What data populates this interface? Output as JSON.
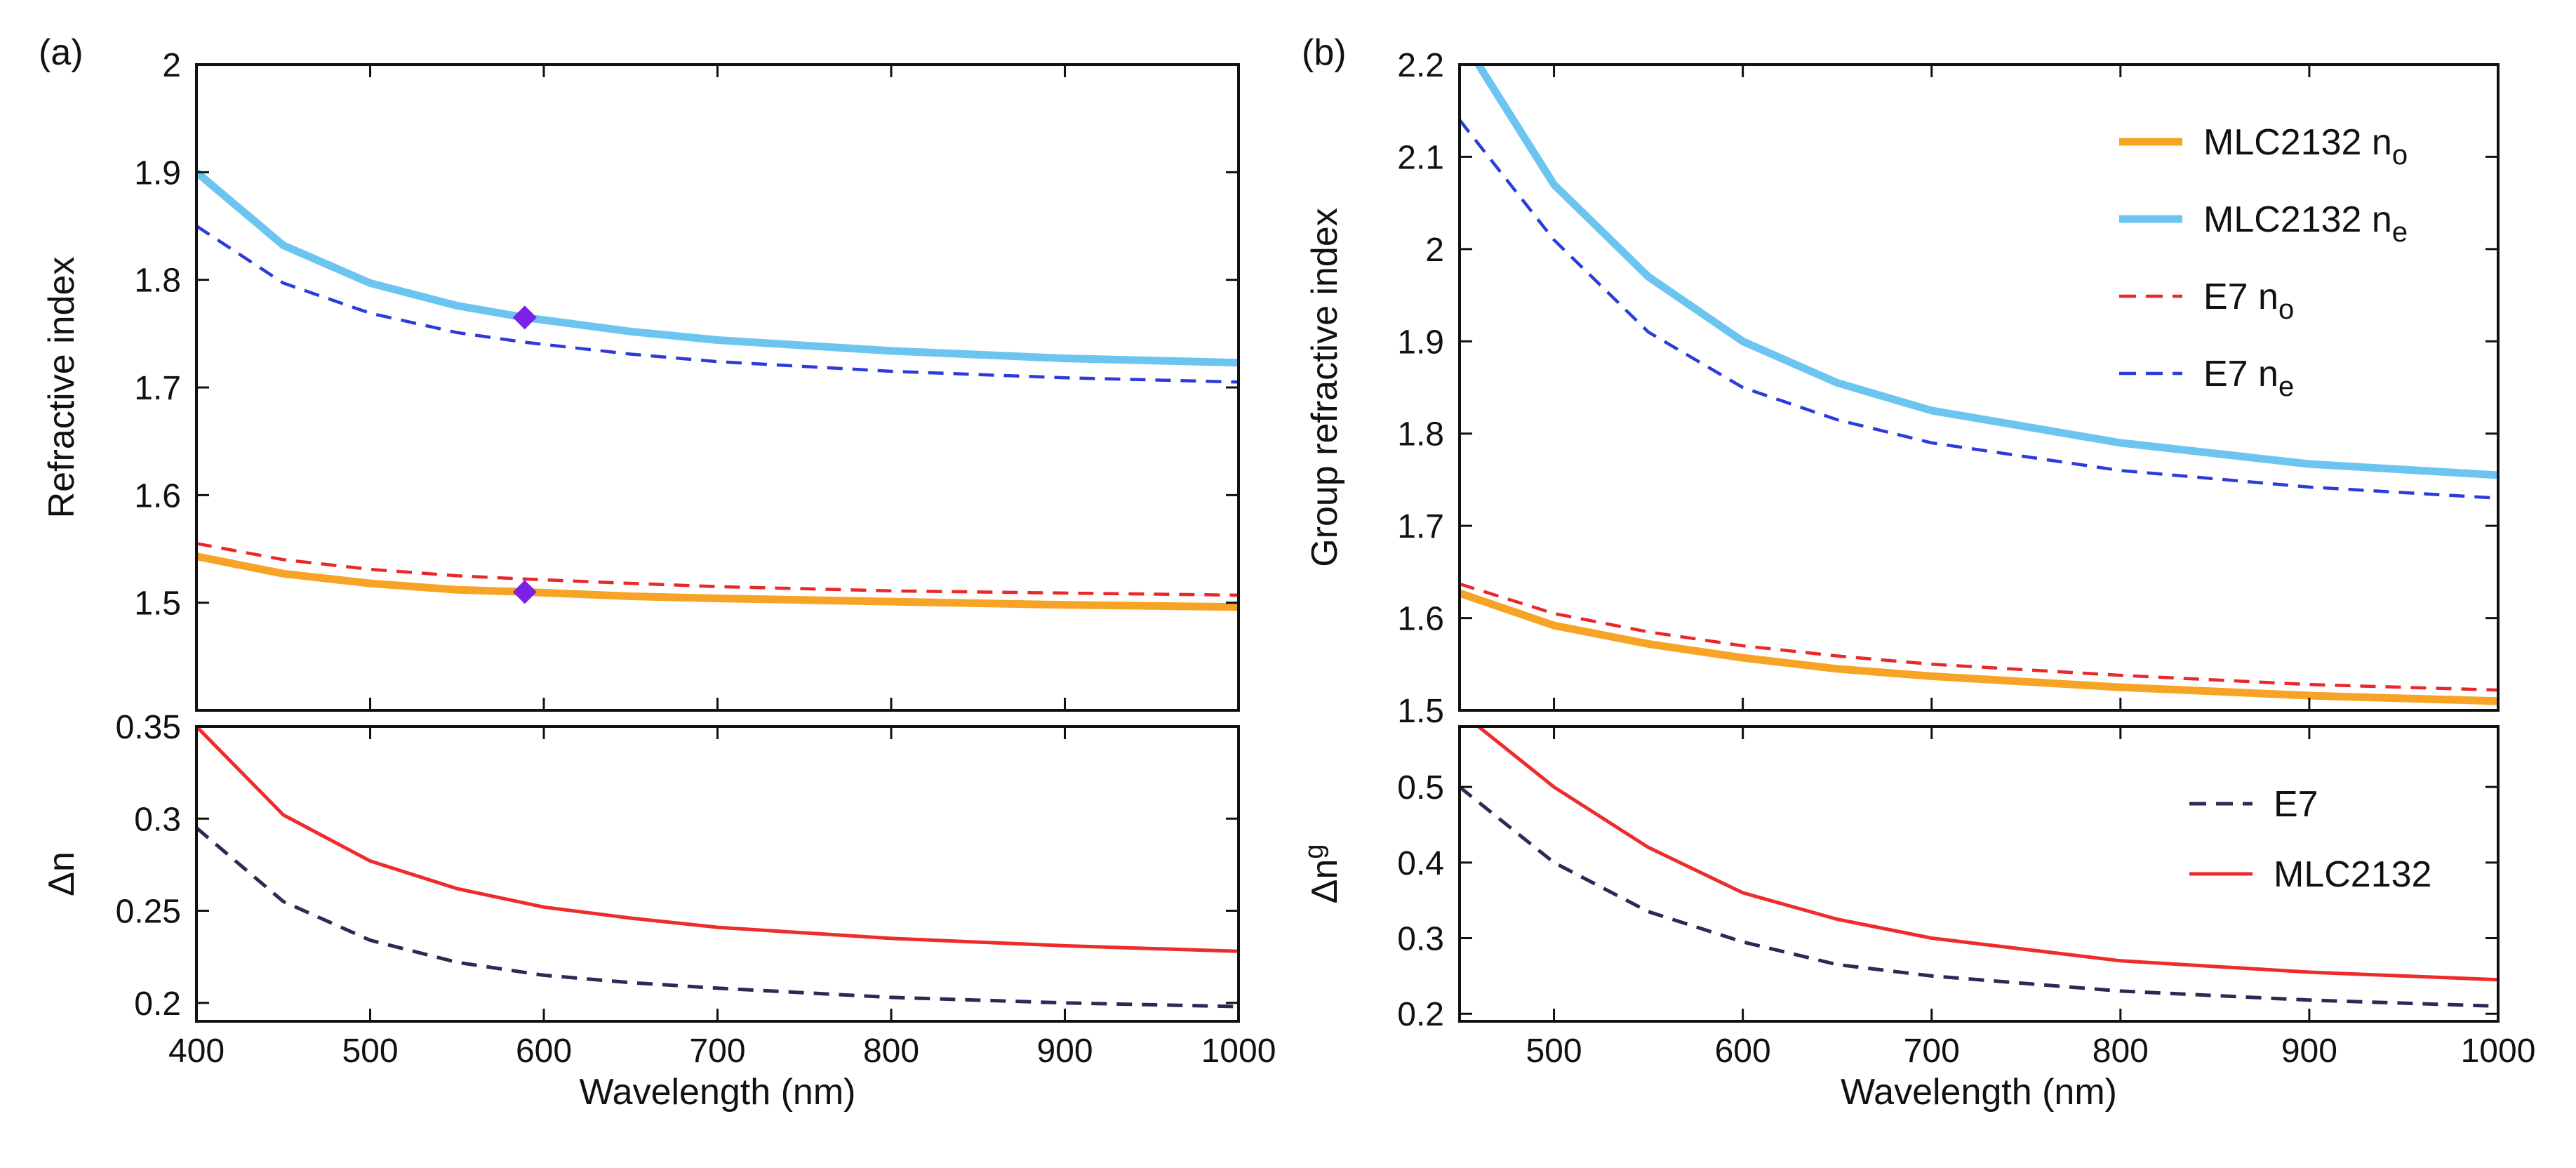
{
  "chart_data": [
    {
      "id": "a_top",
      "panel_label": "(a)",
      "type": "line",
      "xlabel": "",
      "ylabel": "Refractive index",
      "xlim": [
        400,
        1000
      ],
      "ylim": [
        1.4,
        2.0
      ],
      "x_ticks": [],
      "y_ticks": [
        1.5,
        1.6,
        1.7,
        1.8,
        1.9,
        2.0
      ],
      "y_tick_labels": [
        "1.5",
        "1.6",
        "1.7",
        "1.8",
        "1.9",
        "2"
      ],
      "series": [
        {
          "name": "MLC2132 ne",
          "style": "solid-light-blue",
          "color": "#6CC5F0",
          "x": [
            400,
            450,
            500,
            550,
            589,
            650,
            700,
            800,
            900,
            1000
          ],
          "y": [
            1.9,
            1.832,
            1.797,
            1.776,
            1.765,
            1.752,
            1.744,
            1.734,
            1.727,
            1.723
          ]
        },
        {
          "name": "E7 ne",
          "style": "dashed-blue",
          "color": "#2D3CD8",
          "x": [
            400,
            450,
            500,
            550,
            589,
            650,
            700,
            800,
            900,
            1000
          ],
          "y": [
            1.85,
            1.797,
            1.769,
            1.751,
            1.742,
            1.731,
            1.724,
            1.715,
            1.709,
            1.705
          ]
        },
        {
          "name": "E7 no",
          "style": "dashed-red",
          "color": "#E8282B",
          "x": [
            400,
            450,
            500,
            550,
            589,
            650,
            700,
            800,
            900,
            1000
          ],
          "y": [
            1.555,
            1.54,
            1.531,
            1.525,
            1.522,
            1.518,
            1.515,
            1.511,
            1.509,
            1.507
          ]
        },
        {
          "name": "MLC2132 no",
          "style": "solid-orange",
          "color": "#F7A325",
          "x": [
            400,
            450,
            500,
            550,
            589,
            650,
            700,
            800,
            900,
            1000
          ],
          "y": [
            1.543,
            1.527,
            1.518,
            1.512,
            1.51,
            1.506,
            1.504,
            1.501,
            1.498,
            1.496
          ]
        }
      ],
      "markers": [
        {
          "name": "ne at 589 nm",
          "color": "#7B22E6",
          "x": 589,
          "y": 1.765
        },
        {
          "name": "no at 589 nm",
          "color": "#7B22E6",
          "x": 589,
          "y": 1.51
        }
      ]
    },
    {
      "id": "a_bottom",
      "type": "line",
      "xlabel": "Wavelength (nm)",
      "ylabel": "Δn",
      "xlim": [
        400,
        1000
      ],
      "ylim": [
        0.19,
        0.35
      ],
      "x_ticks": [
        400,
        500,
        600,
        700,
        800,
        900,
        1000
      ],
      "x_tick_labels": [
        "400",
        "500",
        "600",
        "700",
        "800",
        "900",
        "1000"
      ],
      "y_ticks": [
        0.2,
        0.25,
        0.3,
        0.35
      ],
      "y_tick_labels": [
        "0.2",
        "0.25",
        "0.3",
        "0.35"
      ],
      "series": [
        {
          "name": "MLC2132",
          "style": "solid-red",
          "color": "#EE2C2C",
          "x": [
            400,
            450,
            500,
            550,
            600,
            650,
            700,
            800,
            900,
            1000
          ],
          "y": [
            0.35,
            0.302,
            0.277,
            0.262,
            0.252,
            0.246,
            0.241,
            0.235,
            0.231,
            0.228
          ]
        },
        {
          "name": "E7",
          "style": "dashed-navy",
          "color": "#2A2A55",
          "x": [
            400,
            450,
            500,
            550,
            600,
            650,
            700,
            800,
            900,
            1000
          ],
          "y": [
            0.295,
            0.255,
            0.234,
            0.222,
            0.215,
            0.211,
            0.208,
            0.203,
            0.2,
            0.198
          ]
        }
      ]
    },
    {
      "id": "b_top",
      "panel_label": "(b)",
      "type": "line",
      "xlabel": "",
      "ylabel": "Group refractive index",
      "xlim": [
        450,
        1000
      ],
      "ylim": [
        1.5,
        2.2
      ],
      "x_ticks": [],
      "y_ticks": [
        1.5,
        1.6,
        1.7,
        1.8,
        1.9,
        2.0,
        2.1,
        2.2
      ],
      "y_tick_labels": [
        "1.5",
        "1.6",
        "1.7",
        "1.8",
        "1.9",
        "2",
        "2.1",
        "2.2"
      ],
      "series": [
        {
          "name": "MLC2132 ne",
          "style": "solid-light-blue",
          "color": "#6CC5F0",
          "x": [
            460,
            500,
            550,
            600,
            650,
            700,
            800,
            900,
            1000
          ],
          "y": [
            2.2,
            2.07,
            1.97,
            1.9,
            1.855,
            1.825,
            1.79,
            1.767,
            1.755
          ]
        },
        {
          "name": "E7 ne",
          "style": "dashed-blue",
          "color": "#2D3CD8",
          "x": [
            450,
            500,
            550,
            600,
            650,
            700,
            800,
            900,
            1000
          ],
          "y": [
            2.14,
            2.01,
            1.91,
            1.85,
            1.815,
            1.79,
            1.76,
            1.742,
            1.73
          ]
        },
        {
          "name": "E7 no",
          "style": "dashed-red",
          "color": "#E8282B",
          "x": [
            450,
            500,
            550,
            600,
            650,
            700,
            800,
            900,
            1000
          ],
          "y": [
            1.637,
            1.605,
            1.585,
            1.57,
            1.559,
            1.55,
            1.538,
            1.528,
            1.522
          ]
        },
        {
          "name": "MLC2132 no",
          "style": "solid-orange",
          "color": "#F7A325",
          "x": [
            450,
            500,
            550,
            600,
            650,
            700,
            800,
            900,
            1000
          ],
          "y": [
            1.627,
            1.592,
            1.572,
            1.557,
            1.545,
            1.537,
            1.525,
            1.516,
            1.51
          ]
        }
      ],
      "legend": {
        "placement": "top-right",
        "entries": [
          {
            "series": "MLC2132 no",
            "label": "MLC2132 n",
            "sub": "o",
            "style": "solid-orange",
            "color": "#F7A325"
          },
          {
            "series": "MLC2132 ne",
            "label": "MLC2132 n",
            "sub": "e",
            "style": "solid-light-blue",
            "color": "#6CC5F0"
          },
          {
            "series": "E7 no",
            "label": "E7 n",
            "sub": "o",
            "style": "dashed-red",
            "color": "#E8282B"
          },
          {
            "series": "E7 ne",
            "label": "E7 n",
            "sub": "e",
            "style": "dashed-blue",
            "color": "#2D3CD8"
          }
        ]
      }
    },
    {
      "id": "b_bottom",
      "type": "line",
      "xlabel": "Wavelength (nm)",
      "ylabel": "Δn",
      "ylabel_sup": "g",
      "xlim": [
        450,
        1000
      ],
      "ylim": [
        0.19,
        0.58
      ],
      "x_ticks": [
        500,
        600,
        700,
        800,
        900,
        1000
      ],
      "x_tick_labels": [
        "500",
        "600",
        "700",
        "800",
        "900",
        "1000"
      ],
      "y_ticks": [
        0.2,
        0.3,
        0.4,
        0.5
      ],
      "y_tick_labels": [
        "0.2",
        "0.3",
        "0.4",
        "0.5"
      ],
      "series": [
        {
          "name": "MLC2132",
          "style": "solid-red",
          "color": "#EE2C2C",
          "x": [
            460,
            500,
            550,
            600,
            650,
            700,
            800,
            900,
            1000
          ],
          "y": [
            0.58,
            0.5,
            0.42,
            0.36,
            0.325,
            0.3,
            0.27,
            0.255,
            0.245
          ]
        },
        {
          "name": "E7",
          "style": "dashed-navy",
          "color": "#2A2A55",
          "x": [
            450,
            500,
            550,
            600,
            650,
            700,
            800,
            900,
            1000
          ],
          "y": [
            0.5,
            0.4,
            0.335,
            0.295,
            0.265,
            0.25,
            0.23,
            0.218,
            0.21
          ]
        }
      ],
      "legend": {
        "placement": "top-right",
        "entries": [
          {
            "series": "E7",
            "label": "E7",
            "style": "dashed-navy",
            "color": "#2A2A55"
          },
          {
            "series": "MLC2132",
            "label": "MLC2132",
            "style": "solid-red",
            "color": "#EE2C2C"
          }
        ]
      }
    }
  ]
}
